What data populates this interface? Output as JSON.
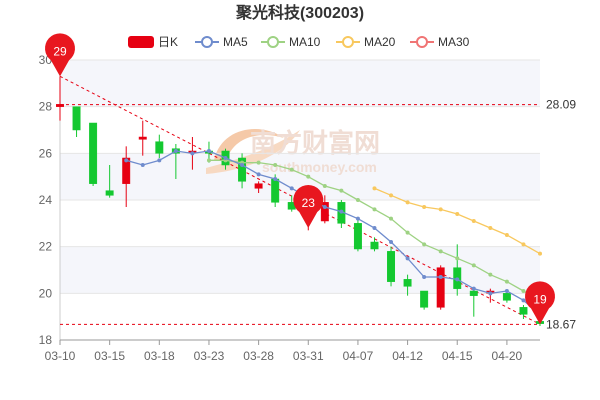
{
  "chart_data": {
    "type": "candlestick",
    "title": "聚光科技(300203)",
    "legend": [
      {
        "name": "日K",
        "color": "#e60012"
      },
      {
        "name": "MA5",
        "color": "#6f8ccd"
      },
      {
        "name": "MA10",
        "color": "#9ed283"
      },
      {
        "name": "MA20",
        "color": "#f8c85e"
      },
      {
        "name": "MA30",
        "color": "#f07474"
      }
    ],
    "ylim": [
      18,
      30
    ],
    "yticks": [
      18,
      20,
      22,
      24,
      26,
      28,
      30
    ],
    "xtick_labels": [
      "03-10",
      "03-15",
      "03-18",
      "03-23",
      "03-28",
      "03-31",
      "04-07",
      "04-12",
      "04-15",
      "04-20"
    ],
    "xtick_index": [
      0,
      3,
      6,
      9,
      12,
      15,
      18,
      21,
      24,
      27
    ],
    "colors": {
      "up": "#e60012",
      "down": "#14c830",
      "ma5": "#6f8ccd",
      "ma10": "#9ed283",
      "ma20": "#f8c85e",
      "ref": "#e60012",
      "grid": "#e6e6e6",
      "band": "#f5f6fb"
    },
    "candles": [
      {
        "o": 28.0,
        "c": 28.1,
        "h": 29.3,
        "l": 27.4
      },
      {
        "o": 28.0,
        "c": 27.0,
        "h": 28.0,
        "l": 26.7
      },
      {
        "o": 27.3,
        "c": 24.7,
        "h": 27.3,
        "l": 24.6
      },
      {
        "o": 24.4,
        "c": 24.2,
        "h": 25.5,
        "l": 24.1
      },
      {
        "o": 24.7,
        "c": 25.8,
        "h": 26.3,
        "l": 23.7
      },
      {
        "o": 26.6,
        "c": 26.7,
        "h": 27.4,
        "l": 25.9
      },
      {
        "o": 26.5,
        "c": 26.0,
        "h": 26.8,
        "l": 25.8
      },
      {
        "o": 26.2,
        "c": 26.0,
        "h": 26.4,
        "l": 24.9
      },
      {
        "o": 26.1,
        "c": 26.1,
        "h": 26.7,
        "l": 25.3
      },
      {
        "o": 26.1,
        "c": 26.0,
        "h": 26.5,
        "l": 25.6
      },
      {
        "o": 26.1,
        "c": 25.5,
        "h": 26.2,
        "l": 25.3
      },
      {
        "o": 25.8,
        "c": 24.8,
        "h": 26.0,
        "l": 24.5
      },
      {
        "o": 24.5,
        "c": 24.7,
        "h": 24.8,
        "l": 24.3
      },
      {
        "o": 24.9,
        "c": 23.9,
        "h": 25.1,
        "l": 23.7
      },
      {
        "o": 23.9,
        "c": 23.6,
        "h": 24.2,
        "l": 23.5
      },
      {
        "o": 23.2,
        "c": 23.3,
        "h": 24.0,
        "l": 22.7
      },
      {
        "o": 23.1,
        "c": 23.9,
        "h": 24.2,
        "l": 23.0
      },
      {
        "o": 23.9,
        "c": 23.0,
        "h": 24.0,
        "l": 22.8
      },
      {
        "o": 23.0,
        "c": 21.9,
        "h": 23.2,
        "l": 21.8
      },
      {
        "o": 22.2,
        "c": 21.9,
        "h": 22.4,
        "l": 21.8
      },
      {
        "o": 21.8,
        "c": 20.5,
        "h": 22.0,
        "l": 20.3
      },
      {
        "o": 20.6,
        "c": 20.3,
        "h": 20.8,
        "l": 19.9
      },
      {
        "o": 20.1,
        "c": 19.4,
        "h": 20.1,
        "l": 19.3
      },
      {
        "o": 19.4,
        "c": 21.1,
        "h": 21.2,
        "l": 19.3
      },
      {
        "o": 21.1,
        "c": 20.2,
        "h": 22.1,
        "l": 19.9
      },
      {
        "o": 20.1,
        "c": 19.9,
        "h": 20.2,
        "l": 19.0
      },
      {
        "o": 20.0,
        "c": 20.1,
        "h": 20.2,
        "l": 19.6
      },
      {
        "o": 20.0,
        "c": 19.7,
        "h": 20.1,
        "l": 19.6
      },
      {
        "o": 19.4,
        "c": 19.1,
        "h": 19.5,
        "l": 18.9
      },
      {
        "o": 18.8,
        "c": 18.7,
        "h": 18.9,
        "l": 18.6
      }
    ],
    "ma5": [
      null,
      null,
      null,
      null,
      25.7,
      25.5,
      25.7,
      26.1,
      26.0,
      26.1,
      25.8,
      25.5,
      25.1,
      24.9,
      24.5,
      24.1,
      23.7,
      23.5,
      23.2,
      22.8,
      22.2,
      21.5,
      20.7,
      20.7,
      20.6,
      20.2,
      20.0,
      20.1,
      19.7,
      19.1
    ],
    "ma10": [
      null,
      null,
      null,
      null,
      null,
      null,
      null,
      null,
      null,
      25.7,
      25.7,
      25.6,
      25.6,
      25.5,
      25.3,
      25.0,
      24.6,
      24.4,
      24.0,
      23.6,
      23.2,
      22.6,
      22.1,
      21.8,
      21.5,
      21.2,
      20.8,
      20.5,
      20.1,
      19.7
    ],
    "ma20": [
      null,
      null,
      null,
      null,
      null,
      null,
      null,
      null,
      null,
      null,
      null,
      null,
      null,
      null,
      null,
      null,
      null,
      null,
      null,
      24.5,
      24.2,
      23.9,
      23.7,
      23.6,
      23.4,
      23.1,
      22.8,
      22.5,
      22.1,
      21.7
    ],
    "pins": [
      {
        "text": "29",
        "index": 0,
        "value": 29.3
      },
      {
        "text": "23",
        "index": 15,
        "value": 22.8
      },
      {
        "text": "19",
        "index": 29,
        "value": 18.67
      }
    ],
    "ref_lines": [
      {
        "value": 28.09,
        "label": "28.09"
      },
      {
        "value": 18.67,
        "label": "18.67"
      }
    ],
    "trend_line": {
      "from_index": 0,
      "from_value": 29.3,
      "to_index": 29,
      "to_value": 18.67
    }
  },
  "watermark": {
    "text": "南方财富网",
    "sub": "southmoney.com"
  }
}
